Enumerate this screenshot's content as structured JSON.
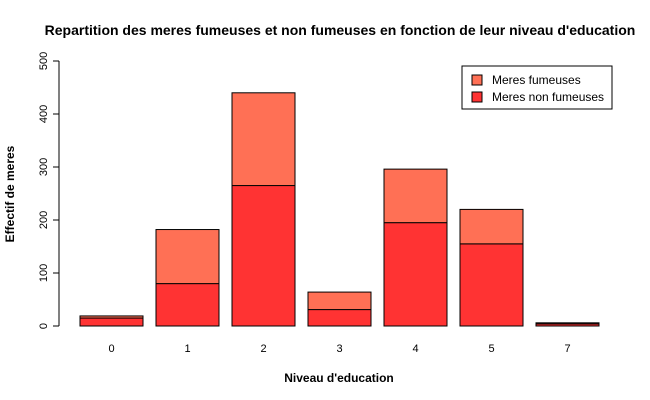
{
  "chart_data": {
    "type": "bar",
    "stacked": true,
    "title": "Repartition des meres fumeuses et non fumeuses en fonction de leur niveau d'education",
    "xlabel": "Niveau d'education",
    "ylabel": "Effectif de meres",
    "categories": [
      "0",
      "1",
      "2",
      "3",
      "4",
      "5",
      "7"
    ],
    "ylim": [
      0,
      500
    ],
    "yticks": [
      0,
      100,
      200,
      300,
      400,
      500
    ],
    "series": [
      {
        "name": "Meres non fumeuses",
        "color": "#ff3333",
        "values": [
          15,
          80,
          265,
          31,
          195,
          155,
          4
        ]
      },
      {
        "name": "Meres fumeuses",
        "color": "#ff7055",
        "values": [
          4,
          102,
          175,
          33,
          101,
          65,
          2
        ]
      }
    ],
    "legend": {
      "position": "top-right",
      "order": [
        "Meres fumeuses",
        "Meres non fumeuses"
      ]
    },
    "grid": false
  }
}
